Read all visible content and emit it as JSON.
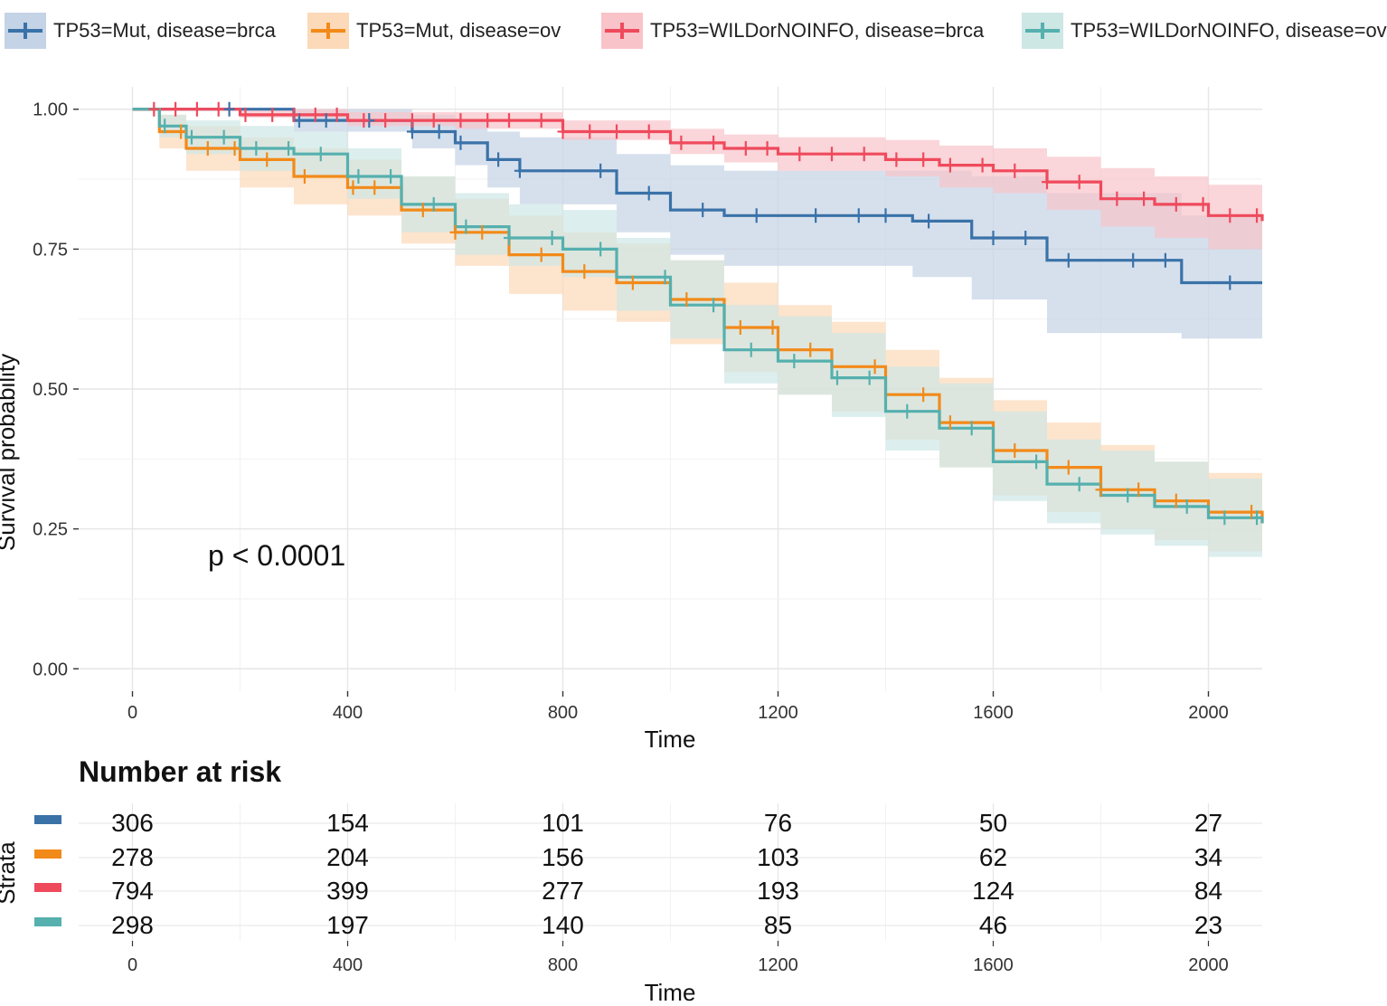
{
  "legend": [
    {
      "label": "TP53=Mut, disease=brca",
      "color": "#3a72a8",
      "fill": "#c4d3e6"
    },
    {
      "label": "TP53=Mut, disease=ov",
      "color": "#f28a1a",
      "fill": "#fcd9b8"
    },
    {
      "label": "TP53=WILDorNOINFO, disease=brca",
      "color": "#ef4a5c",
      "fill": "#f8c3c9"
    },
    {
      "label": "TP53=WILDorNOINFO, disease=ov",
      "color": "#55b0ae",
      "fill": "#cde7e5"
    }
  ],
  "chart_data": [
    {
      "type": "line",
      "xlabel": "Time",
      "ylabel": "Survival probability",
      "xlim": [
        -100,
        2100
      ],
      "ylim": [
        -0.04,
        1.04
      ],
      "xticks": [
        0,
        400,
        800,
        1200,
        1600,
        2000
      ],
      "yticks": [
        0.0,
        0.25,
        0.5,
        0.75,
        1.0
      ],
      "ytick_labels": [
        "0.00",
        "0.25",
        "0.50",
        "0.75",
        "1.00"
      ],
      "grid": true,
      "annotation": "p < 0.0001",
      "series": [
        {
          "name": "TP53=Mut, disease=brca",
          "color": "#3a72a8",
          "fill": "#c4d3e6",
          "x": [
            0,
            300,
            520,
            600,
            660,
            720,
            900,
            1000,
            1100,
            1450,
            1560,
            1700,
            1950,
            2100
          ],
          "y": [
            1.0,
            0.98,
            0.96,
            0.94,
            0.91,
            0.89,
            0.85,
            0.82,
            0.81,
            0.8,
            0.77,
            0.73,
            0.69,
            0.69
          ],
          "lower": [
            1.0,
            0.96,
            0.93,
            0.9,
            0.86,
            0.83,
            0.78,
            0.74,
            0.72,
            0.7,
            0.66,
            0.6,
            0.59,
            0.59
          ],
          "upper": [
            1.0,
            1.0,
            0.99,
            0.98,
            0.96,
            0.95,
            0.92,
            0.9,
            0.89,
            0.89,
            0.88,
            0.85,
            0.81,
            0.81
          ],
          "censor_x": [
            180,
            310,
            360,
            440,
            520,
            570,
            610,
            680,
            720,
            870,
            960,
            1060,
            1160,
            1270,
            1350,
            1400,
            1480,
            1600,
            1660,
            1740,
            1860,
            1920,
            2040
          ]
        },
        {
          "name": "TP53=Mut, disease=ov",
          "color": "#f28a1a",
          "fill": "#fcd9b8",
          "x": [
            0,
            50,
            100,
            200,
            300,
            400,
            500,
            600,
            700,
            800,
            900,
            1000,
            1100,
            1200,
            1300,
            1400,
            1500,
            1600,
            1700,
            1800,
            1900,
            2000,
            2100
          ],
          "y": [
            1.0,
            0.96,
            0.93,
            0.91,
            0.88,
            0.86,
            0.82,
            0.78,
            0.74,
            0.71,
            0.69,
            0.66,
            0.61,
            0.57,
            0.54,
            0.49,
            0.44,
            0.39,
            0.36,
            0.32,
            0.3,
            0.28,
            0.26
          ],
          "lower": [
            1.0,
            0.93,
            0.89,
            0.86,
            0.83,
            0.81,
            0.76,
            0.72,
            0.67,
            0.64,
            0.62,
            0.58,
            0.53,
            0.49,
            0.46,
            0.41,
            0.36,
            0.31,
            0.28,
            0.25,
            0.23,
            0.21,
            0.19
          ],
          "upper": [
            1.0,
            0.99,
            0.97,
            0.95,
            0.93,
            0.91,
            0.88,
            0.84,
            0.81,
            0.78,
            0.76,
            0.73,
            0.69,
            0.65,
            0.62,
            0.57,
            0.52,
            0.48,
            0.44,
            0.4,
            0.37,
            0.35,
            0.33
          ],
          "censor_x": [
            90,
            140,
            190,
            250,
            320,
            410,
            450,
            540,
            600,
            650,
            760,
            840,
            930,
            1030,
            1130,
            1190,
            1260,
            1380,
            1470,
            1520,
            1640,
            1740,
            1800,
            1870,
            1940,
            2080
          ]
        },
        {
          "name": "TP53=WILDorNOINFO, disease=brca",
          "color": "#ef4a5c",
          "fill": "#f8c3c9",
          "x": [
            0,
            200,
            400,
            600,
            800,
            1000,
            1100,
            1200,
            1400,
            1500,
            1600,
            1700,
            1800,
            1900,
            2000,
            2100
          ],
          "y": [
            1.0,
            0.99,
            0.98,
            0.98,
            0.96,
            0.94,
            0.93,
            0.92,
            0.91,
            0.9,
            0.89,
            0.87,
            0.84,
            0.83,
            0.81,
            0.8
          ],
          "lower": [
            1.0,
            0.985,
            0.97,
            0.965,
            0.945,
            0.92,
            0.905,
            0.89,
            0.88,
            0.86,
            0.85,
            0.82,
            0.79,
            0.77,
            0.75,
            0.74
          ],
          "upper": [
            1.0,
            1.0,
            0.995,
            0.995,
            0.98,
            0.965,
            0.955,
            0.95,
            0.945,
            0.935,
            0.93,
            0.915,
            0.895,
            0.88,
            0.865,
            0.86
          ],
          "censor_x": [
            40,
            80,
            120,
            160,
            210,
            260,
            300,
            340,
            380,
            430,
            470,
            520,
            560,
            610,
            660,
            700,
            760,
            800,
            850,
            900,
            960,
            1020,
            1080,
            1140,
            1180,
            1240,
            1300,
            1360,
            1420,
            1470,
            1520,
            1580,
            1640,
            1700,
            1760,
            1830,
            1880,
            1940,
            1990,
            2040,
            2090
          ]
        },
        {
          "name": "TP53=WILDorNOINFO, disease=ov",
          "color": "#55b0ae",
          "fill": "#cde7e5",
          "x": [
            0,
            50,
            100,
            200,
            300,
            400,
            500,
            600,
            700,
            800,
            900,
            1000,
            1100,
            1200,
            1300,
            1400,
            1500,
            1600,
            1700,
            1800,
            1900,
            2000,
            2100
          ],
          "y": [
            1.0,
            0.97,
            0.95,
            0.93,
            0.92,
            0.88,
            0.83,
            0.79,
            0.77,
            0.75,
            0.7,
            0.65,
            0.57,
            0.55,
            0.52,
            0.46,
            0.43,
            0.37,
            0.33,
            0.31,
            0.29,
            0.27,
            0.26
          ],
          "lower": [
            1.0,
            0.95,
            0.92,
            0.89,
            0.88,
            0.84,
            0.78,
            0.74,
            0.72,
            0.7,
            0.64,
            0.59,
            0.51,
            0.49,
            0.45,
            0.39,
            0.36,
            0.3,
            0.26,
            0.24,
            0.22,
            0.2,
            0.19
          ],
          "upper": [
            1.0,
            0.99,
            0.98,
            0.97,
            0.96,
            0.93,
            0.88,
            0.85,
            0.83,
            0.82,
            0.77,
            0.73,
            0.65,
            0.63,
            0.6,
            0.54,
            0.51,
            0.46,
            0.41,
            0.39,
            0.37,
            0.34,
            0.33
          ],
          "censor_x": [
            60,
            110,
            170,
            230,
            290,
            350,
            420,
            480,
            560,
            620,
            700,
            780,
            870,
            990,
            1080,
            1150,
            1230,
            1310,
            1370,
            1440,
            1560,
            1680,
            1760,
            1850,
            1960,
            2030,
            2090
          ]
        }
      ]
    },
    {
      "type": "table",
      "title": "Number at risk",
      "ylabel": "Strata",
      "xlabel": "Time",
      "xticks": [
        0,
        400,
        800,
        1200,
        1600,
        2000
      ],
      "rows": [
        {
          "color": "#3a72a8",
          "values": [
            "306",
            "154",
            "101",
            "76",
            "50",
            "27"
          ]
        },
        {
          "color": "#f28a1a",
          "values": [
            "278",
            "204",
            "156",
            "103",
            "62",
            "34"
          ]
        },
        {
          "color": "#ef4a5c",
          "values": [
            "794",
            "399",
            "277",
            "193",
            "124",
            "84"
          ]
        },
        {
          "color": "#55b0ae",
          "values": [
            "298",
            "197",
            "140",
            "85",
            "46",
            "23"
          ]
        }
      ]
    }
  ]
}
